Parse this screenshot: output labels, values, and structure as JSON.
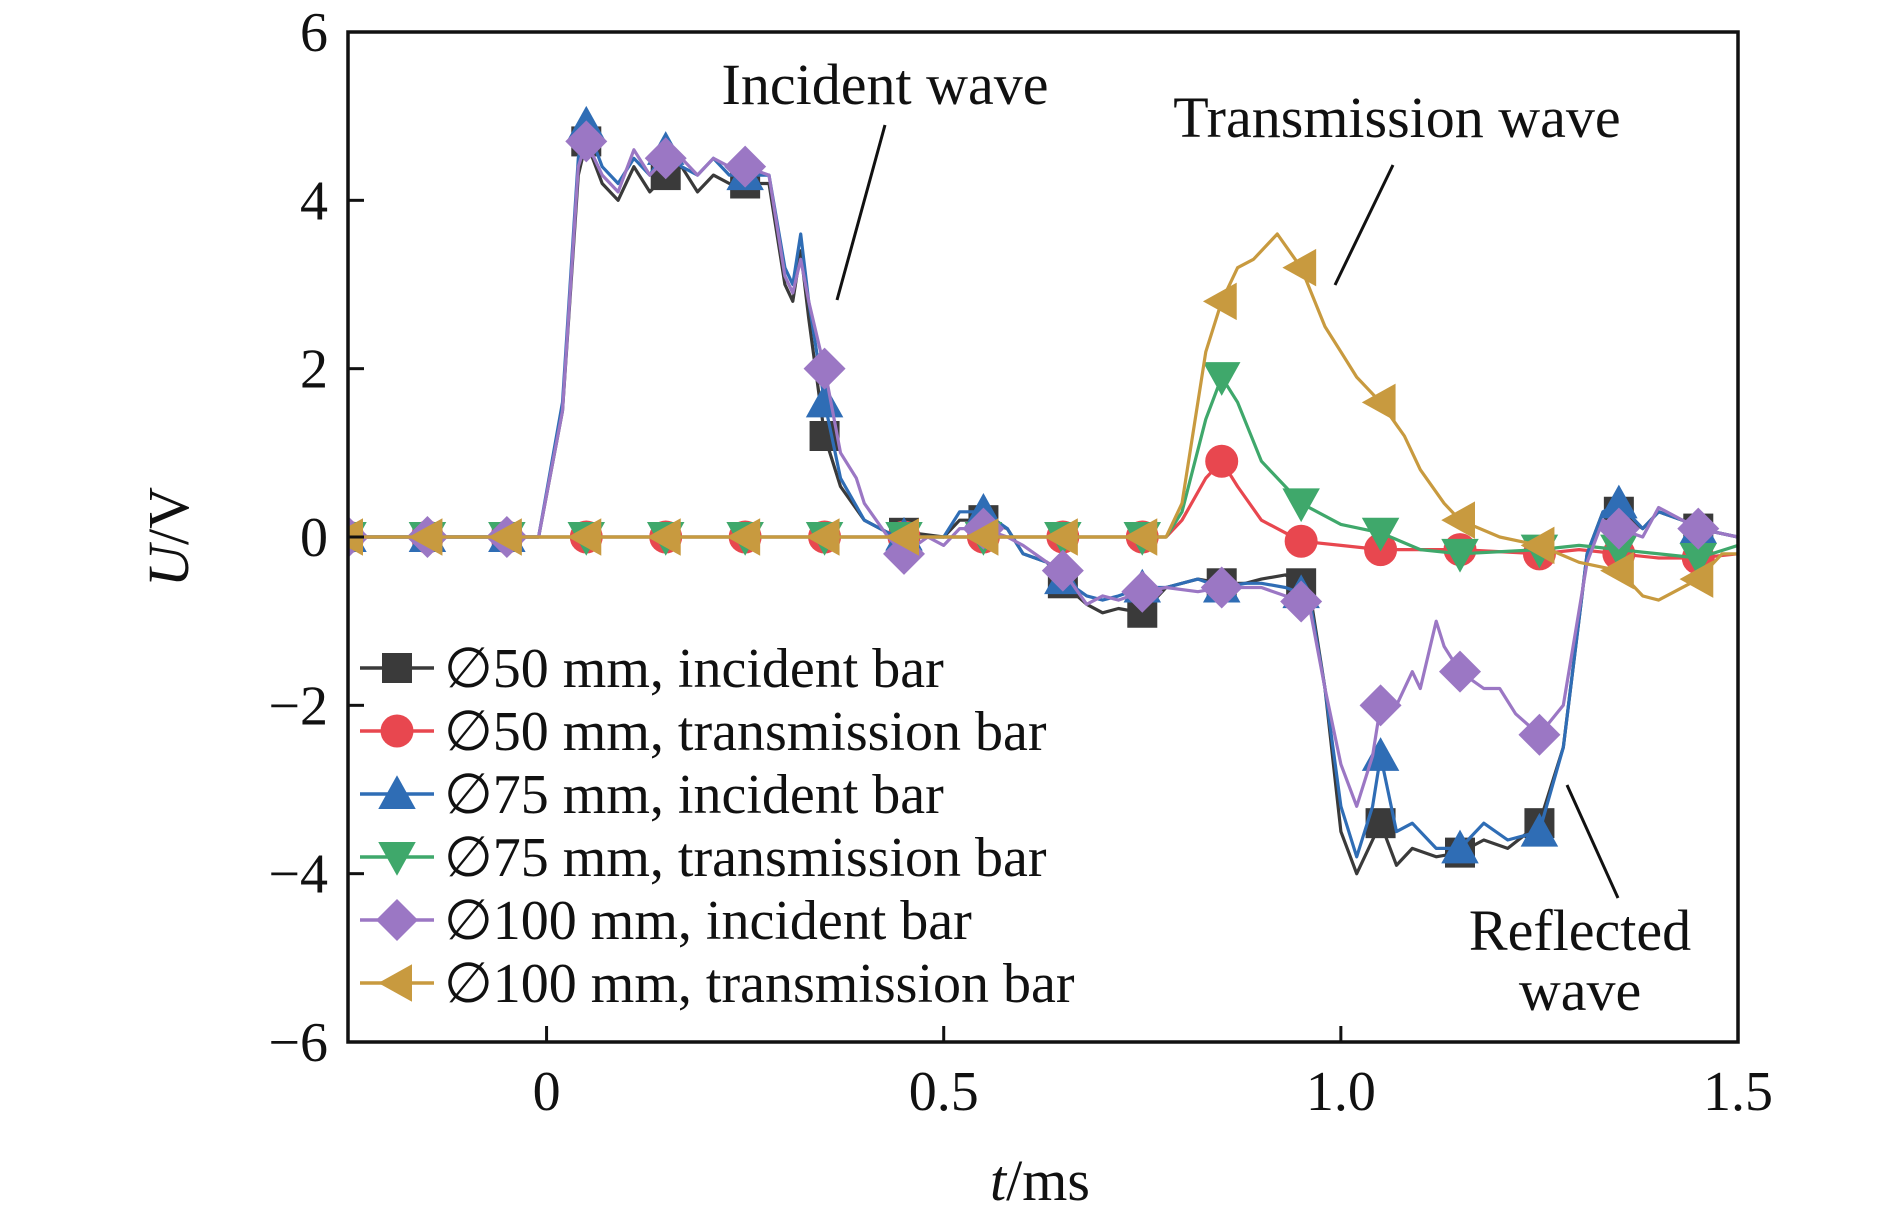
{
  "chart_data": {
    "type": "line",
    "title": "",
    "xlabel": "t/ms",
    "xlabel_var": "t",
    "xlabel_unit": "/ms",
    "ylabel": "U/V",
    "ylabel_var": "U",
    "ylabel_unit": "/V",
    "xlim": [
      -0.25,
      1.5
    ],
    "ylim": [
      -6,
      6
    ],
    "x_ticks": [
      0,
      0.5,
      1.0,
      1.5
    ],
    "x_tick_labels": [
      "0",
      "0.5",
      "1.0",
      "1.5"
    ],
    "y_ticks": [
      -6,
      -4,
      -2,
      0,
      2,
      4,
      6
    ],
    "y_tick_labels": [
      "−6",
      "−4",
      "−2",
      "0",
      "2",
      "4",
      "6"
    ],
    "grid": false,
    "legend_position": "bottom-left",
    "annotations": [
      {
        "text": "Incident wave"
      },
      {
        "text": "Transmission wave"
      },
      {
        "text": "Reflected"
      },
      {
        "text": "wave"
      }
    ],
    "series": [
      {
        "name": "∅50 mm, incident bar",
        "color": "#3a3a3a",
        "marker": "square",
        "points": [
          [
            -0.25,
            0
          ],
          [
            -0.01,
            0
          ],
          [
            0.02,
            1.5
          ],
          [
            0.04,
            4.3
          ],
          [
            0.05,
            4.7
          ],
          [
            0.07,
            4.2
          ],
          [
            0.09,
            4.0
          ],
          [
            0.11,
            4.4
          ],
          [
            0.13,
            4.1
          ],
          [
            0.15,
            4.3
          ],
          [
            0.17,
            4.4
          ],
          [
            0.19,
            4.1
          ],
          [
            0.21,
            4.3
          ],
          [
            0.23,
            4.2
          ],
          [
            0.25,
            4.2
          ],
          [
            0.28,
            4.2
          ],
          [
            0.3,
            3.0
          ],
          [
            0.31,
            2.8
          ],
          [
            0.32,
            3.4
          ],
          [
            0.33,
            2.6
          ],
          [
            0.35,
            1.2
          ],
          [
            0.37,
            0.6
          ],
          [
            0.4,
            0.2
          ],
          [
            0.43,
            0.05
          ],
          [
            0.46,
            0.05
          ],
          [
            0.5,
            0
          ],
          [
            0.52,
            0.2
          ],
          [
            0.55,
            0.2
          ],
          [
            0.58,
            0.1
          ],
          [
            0.6,
            -0.2
          ],
          [
            0.63,
            -0.3
          ],
          [
            0.65,
            -0.55
          ],
          [
            0.68,
            -0.8
          ],
          [
            0.7,
            -0.9
          ],
          [
            0.72,
            -0.85
          ],
          [
            0.75,
            -0.9
          ],
          [
            0.78,
            -0.6
          ],
          [
            0.82,
            -0.5
          ],
          [
            0.85,
            -0.55
          ],
          [
            0.88,
            -0.55
          ],
          [
            0.9,
            -0.5
          ],
          [
            0.93,
            -0.45
          ],
          [
            0.96,
            -0.6
          ],
          [
            0.98,
            -1.8
          ],
          [
            1.0,
            -3.5
          ],
          [
            1.02,
            -4.0
          ],
          [
            1.04,
            -3.6
          ],
          [
            1.05,
            -3.4
          ],
          [
            1.07,
            -3.9
          ],
          [
            1.09,
            -3.7
          ],
          [
            1.12,
            -3.8
          ],
          [
            1.15,
            -3.75
          ],
          [
            1.18,
            -3.6
          ],
          [
            1.21,
            -3.7
          ],
          [
            1.25,
            -3.4
          ],
          [
            1.28,
            -2.5
          ],
          [
            1.31,
            -0.2
          ],
          [
            1.33,
            0.3
          ],
          [
            1.35,
            0.3
          ],
          [
            1.38,
            0.1
          ],
          [
            1.4,
            0.3
          ],
          [
            1.43,
            0.2
          ],
          [
            1.45,
            0.1
          ],
          [
            1.5,
            0
          ]
        ],
        "markers_x": [
          -0.25,
          -0.15,
          -0.05,
          0.05,
          0.15,
          0.25,
          0.35,
          0.45,
          0.55,
          0.65,
          0.75,
          0.85,
          0.95,
          1.05,
          1.15,
          1.25,
          1.35,
          1.45
        ]
      },
      {
        "name": "∅50 mm, transmission bar",
        "color": "#e8474f",
        "marker": "circle",
        "points": [
          [
            -0.25,
            0
          ],
          [
            0.78,
            0
          ],
          [
            0.8,
            0.2
          ],
          [
            0.83,
            0.7
          ],
          [
            0.85,
            0.9
          ],
          [
            0.87,
            0.6
          ],
          [
            0.9,
            0.2
          ],
          [
            0.93,
            0.05
          ],
          [
            0.95,
            -0.05
          ],
          [
            1.0,
            -0.1
          ],
          [
            1.05,
            -0.15
          ],
          [
            1.15,
            -0.15
          ],
          [
            1.25,
            -0.2
          ],
          [
            1.3,
            -0.15
          ],
          [
            1.4,
            -0.25
          ],
          [
            1.45,
            -0.25
          ],
          [
            1.5,
            -0.2
          ]
        ],
        "markers_x": [
          -0.25,
          -0.15,
          -0.05,
          0.05,
          0.15,
          0.25,
          0.35,
          0.45,
          0.55,
          0.65,
          0.75,
          0.85,
          0.95,
          1.05,
          1.15,
          1.25,
          1.35,
          1.45
        ]
      },
      {
        "name": "∅75 mm, incident bar",
        "color": "#2f6db5",
        "marker": "triangle-up",
        "points": [
          [
            -0.25,
            0
          ],
          [
            -0.01,
            0
          ],
          [
            0.02,
            1.6
          ],
          [
            0.04,
            4.5
          ],
          [
            0.05,
            4.9
          ],
          [
            0.07,
            4.4
          ],
          [
            0.09,
            4.2
          ],
          [
            0.11,
            4.5
          ],
          [
            0.13,
            4.3
          ],
          [
            0.15,
            4.6
          ],
          [
            0.17,
            4.4
          ],
          [
            0.19,
            4.3
          ],
          [
            0.21,
            4.5
          ],
          [
            0.23,
            4.3
          ],
          [
            0.25,
            4.3
          ],
          [
            0.28,
            4.3
          ],
          [
            0.3,
            3.2
          ],
          [
            0.31,
            3.0
          ],
          [
            0.32,
            3.6
          ],
          [
            0.33,
            2.8
          ],
          [
            0.35,
            1.6
          ],
          [
            0.37,
            0.7
          ],
          [
            0.4,
            0.2
          ],
          [
            0.43,
            0.05
          ],
          [
            0.46,
            0
          ],
          [
            0.5,
            0
          ],
          [
            0.52,
            0.3
          ],
          [
            0.55,
            0.3
          ],
          [
            0.58,
            0.1
          ],
          [
            0.6,
            -0.2
          ],
          [
            0.63,
            -0.3
          ],
          [
            0.65,
            -0.5
          ],
          [
            0.68,
            -0.7
          ],
          [
            0.7,
            -0.75
          ],
          [
            0.72,
            -0.7
          ],
          [
            0.75,
            -0.6
          ],
          [
            0.78,
            -0.6
          ],
          [
            0.82,
            -0.5
          ],
          [
            0.85,
            -0.6
          ],
          [
            0.88,
            -0.55
          ],
          [
            0.9,
            -0.55
          ],
          [
            0.93,
            -0.6
          ],
          [
            0.96,
            -0.7
          ],
          [
            0.98,
            -1.8
          ],
          [
            1.0,
            -3.2
          ],
          [
            1.02,
            -3.8
          ],
          [
            1.04,
            -3.2
          ],
          [
            1.05,
            -2.6
          ],
          [
            1.07,
            -3.5
          ],
          [
            1.09,
            -3.4
          ],
          [
            1.12,
            -3.7
          ],
          [
            1.15,
            -3.7
          ],
          [
            1.18,
            -3.4
          ],
          [
            1.21,
            -3.6
          ],
          [
            1.25,
            -3.5
          ],
          [
            1.28,
            -2.5
          ],
          [
            1.31,
            -0.2
          ],
          [
            1.33,
            0.3
          ],
          [
            1.35,
            0.4
          ],
          [
            1.38,
            0.1
          ],
          [
            1.4,
            0.3
          ],
          [
            1.43,
            0.2
          ],
          [
            1.45,
            0.1
          ],
          [
            1.5,
            0
          ]
        ],
        "markers_x": [
          -0.25,
          -0.15,
          -0.05,
          0.05,
          0.15,
          0.25,
          0.35,
          0.45,
          0.55,
          0.65,
          0.75,
          0.85,
          0.95,
          1.05,
          1.15,
          1.25,
          1.35,
          1.45
        ]
      },
      {
        "name": "∅75 mm, transmission bar",
        "color": "#3fa86b",
        "marker": "triangle-down",
        "points": [
          [
            -0.25,
            0
          ],
          [
            0.78,
            0
          ],
          [
            0.8,
            0.3
          ],
          [
            0.83,
            1.4
          ],
          [
            0.85,
            1.9
          ],
          [
            0.87,
            1.6
          ],
          [
            0.9,
            0.9
          ],
          [
            0.93,
            0.6
          ],
          [
            0.95,
            0.4
          ],
          [
            1.0,
            0.15
          ],
          [
            1.05,
            0.05
          ],
          [
            1.1,
            -0.15
          ],
          [
            1.15,
            -0.2
          ],
          [
            1.25,
            -0.15
          ],
          [
            1.3,
            -0.1
          ],
          [
            1.35,
            -0.15
          ],
          [
            1.45,
            -0.25
          ],
          [
            1.5,
            -0.1
          ]
        ],
        "markers_x": [
          -0.25,
          -0.15,
          -0.05,
          0.05,
          0.15,
          0.25,
          0.35,
          0.45,
          0.55,
          0.65,
          0.75,
          0.85,
          0.95,
          1.05,
          1.15,
          1.25,
          1.35,
          1.45
        ]
      },
      {
        "name": "∅100 mm, incident bar",
        "color": "#9b77c4",
        "marker": "diamond",
        "points": [
          [
            -0.25,
            0
          ],
          [
            -0.01,
            0
          ],
          [
            0.02,
            1.5
          ],
          [
            0.04,
            4.4
          ],
          [
            0.05,
            4.7
          ],
          [
            0.07,
            4.3
          ],
          [
            0.09,
            4.1
          ],
          [
            0.11,
            4.6
          ],
          [
            0.13,
            4.3
          ],
          [
            0.15,
            4.5
          ],
          [
            0.17,
            4.5
          ],
          [
            0.19,
            4.3
          ],
          [
            0.21,
            4.5
          ],
          [
            0.23,
            4.4
          ],
          [
            0.25,
            4.4
          ],
          [
            0.28,
            4.3
          ],
          [
            0.3,
            3.1
          ],
          [
            0.31,
            2.9
          ],
          [
            0.32,
            3.3
          ],
          [
            0.33,
            2.8
          ],
          [
            0.35,
            2.0
          ],
          [
            0.37,
            1.0
          ],
          [
            0.39,
            0.7
          ],
          [
            0.4,
            0.4
          ],
          [
            0.43,
            0
          ],
          [
            0.45,
            -0.2
          ],
          [
            0.48,
            0
          ],
          [
            0.5,
            -0.1
          ],
          [
            0.52,
            0.1
          ],
          [
            0.55,
            0.1
          ],
          [
            0.58,
            0
          ],
          [
            0.6,
            -0.1
          ],
          [
            0.63,
            -0.3
          ],
          [
            0.65,
            -0.4
          ],
          [
            0.68,
            -0.8
          ],
          [
            0.7,
            -0.7
          ],
          [
            0.72,
            -0.75
          ],
          [
            0.75,
            -0.65
          ],
          [
            0.78,
            -0.6
          ],
          [
            0.82,
            -0.65
          ],
          [
            0.85,
            -0.6
          ],
          [
            0.88,
            -0.6
          ],
          [
            0.9,
            -0.6
          ],
          [
            0.93,
            -0.7
          ],
          [
            0.96,
            -0.8
          ],
          [
            0.98,
            -1.8
          ],
          [
            1.0,
            -2.7
          ],
          [
            1.02,
            -3.2
          ],
          [
            1.04,
            -2.6
          ],
          [
            1.05,
            -2.0
          ],
          [
            1.07,
            -2.0
          ],
          [
            1.09,
            -1.6
          ],
          [
            1.1,
            -1.8
          ],
          [
            1.12,
            -1.0
          ],
          [
            1.13,
            -1.3
          ],
          [
            1.15,
            -1.6
          ],
          [
            1.18,
            -1.8
          ],
          [
            1.2,
            -1.8
          ],
          [
            1.22,
            -2.1
          ],
          [
            1.25,
            -2.35
          ],
          [
            1.28,
            -2.0
          ],
          [
            1.31,
            -0.3
          ],
          [
            1.33,
            0.2
          ],
          [
            1.35,
            0.1
          ],
          [
            1.38,
            0
          ],
          [
            1.4,
            0.35
          ],
          [
            1.43,
            0.2
          ],
          [
            1.45,
            0.1
          ],
          [
            1.5,
            0
          ]
        ],
        "markers_x": [
          -0.25,
          -0.15,
          -0.05,
          0.05,
          0.15,
          0.25,
          0.35,
          0.45,
          0.55,
          0.65,
          0.75,
          0.85,
          0.95,
          1.05,
          1.15,
          1.25,
          1.35,
          1.45
        ]
      },
      {
        "name": "∅100 mm, transmission bar",
        "color": "#c89a3f",
        "marker": "triangle-left",
        "points": [
          [
            -0.25,
            0
          ],
          [
            0.78,
            0
          ],
          [
            0.8,
            0.4
          ],
          [
            0.83,
            2.2
          ],
          [
            0.85,
            2.8
          ],
          [
            0.87,
            3.2
          ],
          [
            0.89,
            3.3
          ],
          [
            0.91,
            3.5
          ],
          [
            0.92,
            3.6
          ],
          [
            0.95,
            3.2
          ],
          [
            0.98,
            2.5
          ],
          [
            1.0,
            2.2
          ],
          [
            1.02,
            1.9
          ],
          [
            1.05,
            1.6
          ],
          [
            1.08,
            1.2
          ],
          [
            1.1,
            0.8
          ],
          [
            1.13,
            0.4
          ],
          [
            1.15,
            0.2
          ],
          [
            1.2,
            0
          ],
          [
            1.25,
            -0.1
          ],
          [
            1.3,
            -0.3
          ],
          [
            1.35,
            -0.4
          ],
          [
            1.38,
            -0.7
          ],
          [
            1.4,
            -0.75
          ],
          [
            1.45,
            -0.5
          ],
          [
            1.48,
            -0.2
          ],
          [
            1.5,
            -0.2
          ]
        ],
        "markers_x": [
          -0.25,
          -0.15,
          -0.05,
          0.05,
          0.15,
          0.25,
          0.35,
          0.45,
          0.55,
          0.65,
          0.75,
          0.85,
          0.95,
          1.05,
          1.15,
          1.25,
          1.35,
          1.45
        ]
      }
    ]
  }
}
